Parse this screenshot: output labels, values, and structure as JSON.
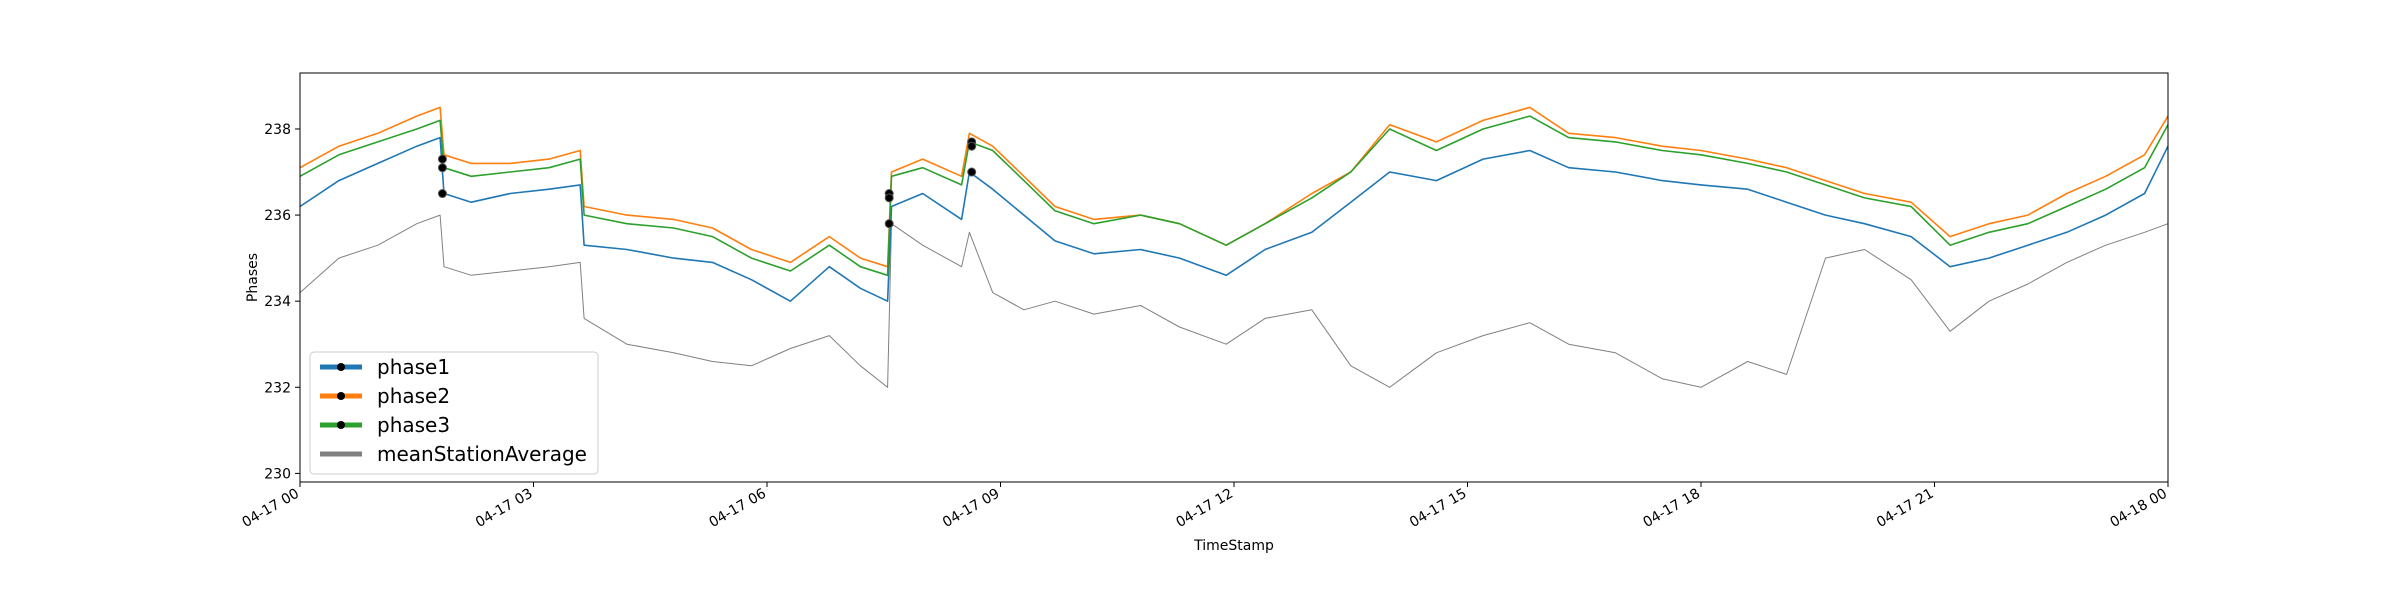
{
  "chart_data": {
    "type": "line",
    "xlabel": "TimeStamp",
    "ylabel": "Phases",
    "xlim": [
      "04-17 00",
      "04-18 00"
    ],
    "ylim": [
      229.8,
      239.3
    ],
    "x_ticks": [
      {
        "label": "04-17 00",
        "hour": 0
      },
      {
        "label": "04-17 03",
        "hour": 3
      },
      {
        "label": "04-17 06",
        "hour": 6
      },
      {
        "label": "04-17 09",
        "hour": 9
      },
      {
        "label": "04-17 12",
        "hour": 12
      },
      {
        "label": "04-17 15",
        "hour": 15
      },
      {
        "label": "04-17 18",
        "hour": 18
      },
      {
        "label": "04-17 21",
        "hour": 21
      },
      {
        "label": "04-18 00",
        "hour": 24
      }
    ],
    "y_ticks": [
      230,
      232,
      234,
      236,
      238
    ],
    "grid": false,
    "legend_position": "lower-left",
    "series": [
      {
        "name": "phase1",
        "color": "#1f77b4",
        "hours": [
          0,
          0.5,
          1,
          1.5,
          1.8,
          1.85,
          2.2,
          2.7,
          3.2,
          3.6,
          3.65,
          4.2,
          4.8,
          5.3,
          5.8,
          6.3,
          6.8,
          7.2,
          7.55,
          7.6,
          8.0,
          8.5,
          8.6,
          8.9,
          9.3,
          9.7,
          10.2,
          10.8,
          11.3,
          11.9,
          12.4,
          13.0,
          13.5,
          14.0,
          14.6,
          15.2,
          15.8,
          16.3,
          16.9,
          17.5,
          18.0,
          18.6,
          19.1,
          19.6,
          20.1,
          20.7,
          21.2,
          21.7,
          22.2,
          22.7,
          23.2,
          23.7,
          24.0
        ],
        "values": [
          236.2,
          236.8,
          237.2,
          237.6,
          237.8,
          236.5,
          236.3,
          236.5,
          236.6,
          236.7,
          235.3,
          235.2,
          235.0,
          234.9,
          234.5,
          234.0,
          234.8,
          234.3,
          234.0,
          236.2,
          236.5,
          235.9,
          237.0,
          236.6,
          236.0,
          235.4,
          235.1,
          235.2,
          235.0,
          234.6,
          235.2,
          235.6,
          236.3,
          237.0,
          236.8,
          237.3,
          237.5,
          237.1,
          237.0,
          236.8,
          236.7,
          236.6,
          236.3,
          236.0,
          235.8,
          235.5,
          234.8,
          235.0,
          235.3,
          235.6,
          236.0,
          236.5,
          237.6
        ]
      },
      {
        "name": "phase2",
        "color": "#ff7f0e",
        "hours": [
          0,
          0.5,
          1,
          1.5,
          1.8,
          1.85,
          2.2,
          2.7,
          3.2,
          3.6,
          3.65,
          4.2,
          4.8,
          5.3,
          5.8,
          6.3,
          6.8,
          7.2,
          7.55,
          7.6,
          8.0,
          8.5,
          8.6,
          8.9,
          9.3,
          9.7,
          10.2,
          10.8,
          11.3,
          11.9,
          12.4,
          13.0,
          13.5,
          14.0,
          14.6,
          15.2,
          15.8,
          16.3,
          16.9,
          17.5,
          18.0,
          18.6,
          19.1,
          19.6,
          20.1,
          20.7,
          21.2,
          21.7,
          22.2,
          22.7,
          23.2,
          23.7,
          24.0
        ],
        "values": [
          237.1,
          237.6,
          237.9,
          238.3,
          238.5,
          237.4,
          237.2,
          237.2,
          237.3,
          237.5,
          236.2,
          236.0,
          235.9,
          235.7,
          235.2,
          234.9,
          235.5,
          235.0,
          234.8,
          237.0,
          237.3,
          236.9,
          237.9,
          237.6,
          236.9,
          236.2,
          235.9,
          236.0,
          235.8,
          235.3,
          235.8,
          236.5,
          237.0,
          238.1,
          237.7,
          238.2,
          238.5,
          237.9,
          237.8,
          237.6,
          237.5,
          237.3,
          237.1,
          236.8,
          236.5,
          236.3,
          235.5,
          235.8,
          236.0,
          236.5,
          236.9,
          237.4,
          238.3
        ]
      },
      {
        "name": "phase3",
        "color": "#2ca02c",
        "hours": [
          0,
          0.5,
          1,
          1.5,
          1.8,
          1.85,
          2.2,
          2.7,
          3.2,
          3.6,
          3.65,
          4.2,
          4.8,
          5.3,
          5.8,
          6.3,
          6.8,
          7.2,
          7.55,
          7.6,
          8.0,
          8.5,
          8.6,
          8.9,
          9.3,
          9.7,
          10.2,
          10.8,
          11.3,
          11.9,
          12.4,
          13.0,
          13.5,
          14.0,
          14.6,
          15.2,
          15.8,
          16.3,
          16.9,
          17.5,
          18.0,
          18.6,
          19.1,
          19.6,
          20.1,
          20.7,
          21.2,
          21.7,
          22.2,
          22.7,
          23.2,
          23.7,
          24.0
        ],
        "values": [
          236.9,
          237.4,
          237.7,
          238.0,
          238.2,
          237.1,
          236.9,
          237.0,
          237.1,
          237.3,
          236.0,
          235.8,
          235.7,
          235.5,
          235.0,
          234.7,
          235.3,
          234.8,
          234.6,
          236.9,
          237.1,
          236.7,
          237.7,
          237.5,
          236.8,
          236.1,
          235.8,
          236.0,
          235.8,
          235.3,
          235.8,
          236.4,
          237.0,
          238.0,
          237.5,
          238.0,
          238.3,
          237.8,
          237.7,
          237.5,
          237.4,
          237.2,
          237.0,
          236.7,
          236.4,
          236.2,
          235.3,
          235.6,
          235.8,
          236.2,
          236.6,
          237.1,
          238.1
        ]
      },
      {
        "name": "meanStationAverage",
        "color": "#808080",
        "hours": [
          0,
          0.5,
          1,
          1.5,
          1.8,
          1.85,
          2.2,
          2.7,
          3.2,
          3.6,
          3.65,
          4.2,
          4.8,
          5.3,
          5.8,
          6.3,
          6.8,
          7.2,
          7.55,
          7.6,
          8.0,
          8.5,
          8.6,
          8.9,
          9.3,
          9.7,
          10.2,
          10.8,
          11.3,
          11.9,
          12.4,
          13.0,
          13.5,
          14.0,
          14.6,
          15.2,
          15.8,
          16.3,
          16.9,
          17.5,
          18.0,
          18.6,
          19.1,
          19.6,
          20.1,
          20.7,
          21.2,
          21.7,
          22.2,
          22.7,
          23.2,
          23.7,
          24.0
        ],
        "values": [
          234.2,
          235.0,
          235.3,
          235.8,
          236.0,
          234.8,
          234.6,
          234.7,
          234.8,
          234.9,
          233.6,
          233.0,
          232.8,
          232.6,
          232.5,
          232.9,
          233.2,
          232.5,
          232.0,
          235.8,
          235.3,
          234.8,
          235.6,
          234.2,
          233.8,
          234.0,
          233.7,
          233.9,
          233.4,
          233.0,
          233.6,
          233.8,
          232.5,
          232.0,
          232.8,
          233.2,
          233.5,
          233.0,
          232.8,
          232.2,
          232.0,
          232.6,
          232.3,
          235.0,
          235.2,
          234.5,
          233.3,
          234.0,
          234.4,
          234.9,
          235.3,
          235.6,
          235.8
        ]
      }
    ],
    "markers": [
      {
        "hour": 1.83,
        "value": 236.5
      },
      {
        "hour": 1.83,
        "value": 237.3
      },
      {
        "hour": 1.83,
        "value": 237.1
      },
      {
        "hour": 7.57,
        "value": 235.8
      },
      {
        "hour": 7.57,
        "value": 236.5
      },
      {
        "hour": 7.57,
        "value": 236.4
      },
      {
        "hour": 8.63,
        "value": 237.0
      },
      {
        "hour": 8.63,
        "value": 237.7
      },
      {
        "hour": 8.63,
        "value": 237.6
      }
    ],
    "legend": [
      {
        "label": "phase1",
        "color": "#1f77b4",
        "marker": true
      },
      {
        "label": "phase2",
        "color": "#ff7f0e",
        "marker": true
      },
      {
        "label": "phase3",
        "color": "#2ca02c",
        "marker": true
      },
      {
        "label": "meanStationAverage",
        "color": "#808080",
        "marker": false
      }
    ]
  }
}
